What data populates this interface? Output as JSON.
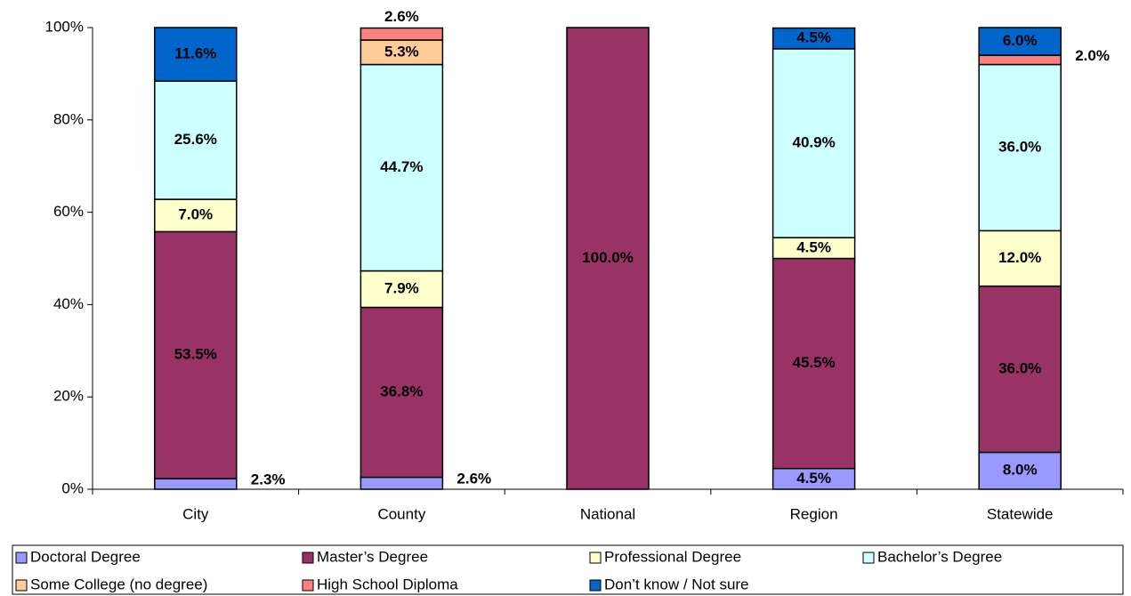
{
  "chart_data": {
    "type": "stacked_bar",
    "categories": [
      "City",
      "County",
      "National",
      "Region",
      "Statewide"
    ],
    "series": [
      {
        "name": "Doctoral Degree",
        "color": "#9999ff",
        "values": [
          2.3,
          2.6,
          null,
          4.5,
          8.0
        ],
        "value_labels": [
          "2.3%",
          "2.6%",
          null,
          "4.5%",
          "8.0%"
        ]
      },
      {
        "name": "Master’s Degree",
        "color": "#993366",
        "values": [
          53.5,
          36.8,
          100.0,
          45.5,
          36.0
        ],
        "value_labels": [
          "53.5%",
          "36.8%",
          "100.0%",
          "45.5%",
          "36.0%"
        ]
      },
      {
        "name": "Professional Degree",
        "color": "#ffffcc",
        "values": [
          7.0,
          7.9,
          null,
          4.5,
          12.0
        ],
        "value_labels": [
          "7.0%",
          "7.9%",
          null,
          "4.5%",
          "12.0%"
        ]
      },
      {
        "name": "Bachelor’s Degree",
        "color": "#ccffff",
        "values": [
          25.6,
          44.7,
          null,
          40.9,
          36.0
        ],
        "value_labels": [
          "25.6%",
          "44.7%",
          null,
          "40.9%",
          "36.0%"
        ]
      },
      {
        "name": "Some College (no degree)",
        "color": "#ffcc99",
        "values": [
          null,
          5.3,
          null,
          null,
          null
        ],
        "value_labels": [
          null,
          "5.3%",
          null,
          null,
          null
        ]
      },
      {
        "name": "High School Diploma",
        "color": "#ff8080",
        "values": [
          null,
          2.6,
          null,
          null,
          2.0
        ],
        "value_labels": [
          null,
          "2.6%",
          null,
          null,
          "2.0%"
        ]
      },
      {
        "name": "Don’t know / Not sure",
        "color": "#0066cc",
        "values": [
          11.6,
          null,
          null,
          4.5,
          6.0
        ],
        "value_labels": [
          "11.6%",
          null,
          null,
          "4.5%",
          "6.0%"
        ]
      }
    ],
    "ylim": [
      0,
      100
    ],
    "yticks": [
      {
        "value": 0,
        "label": "0%"
      },
      {
        "value": 20,
        "label": "20%"
      },
      {
        "value": 40,
        "label": "40%"
      },
      {
        "value": 60,
        "label": "60%"
      },
      {
        "value": 80,
        "label": "80%"
      },
      {
        "value": 100,
        "label": "100%"
      }
    ],
    "grid": false,
    "legend": "bottom"
  }
}
